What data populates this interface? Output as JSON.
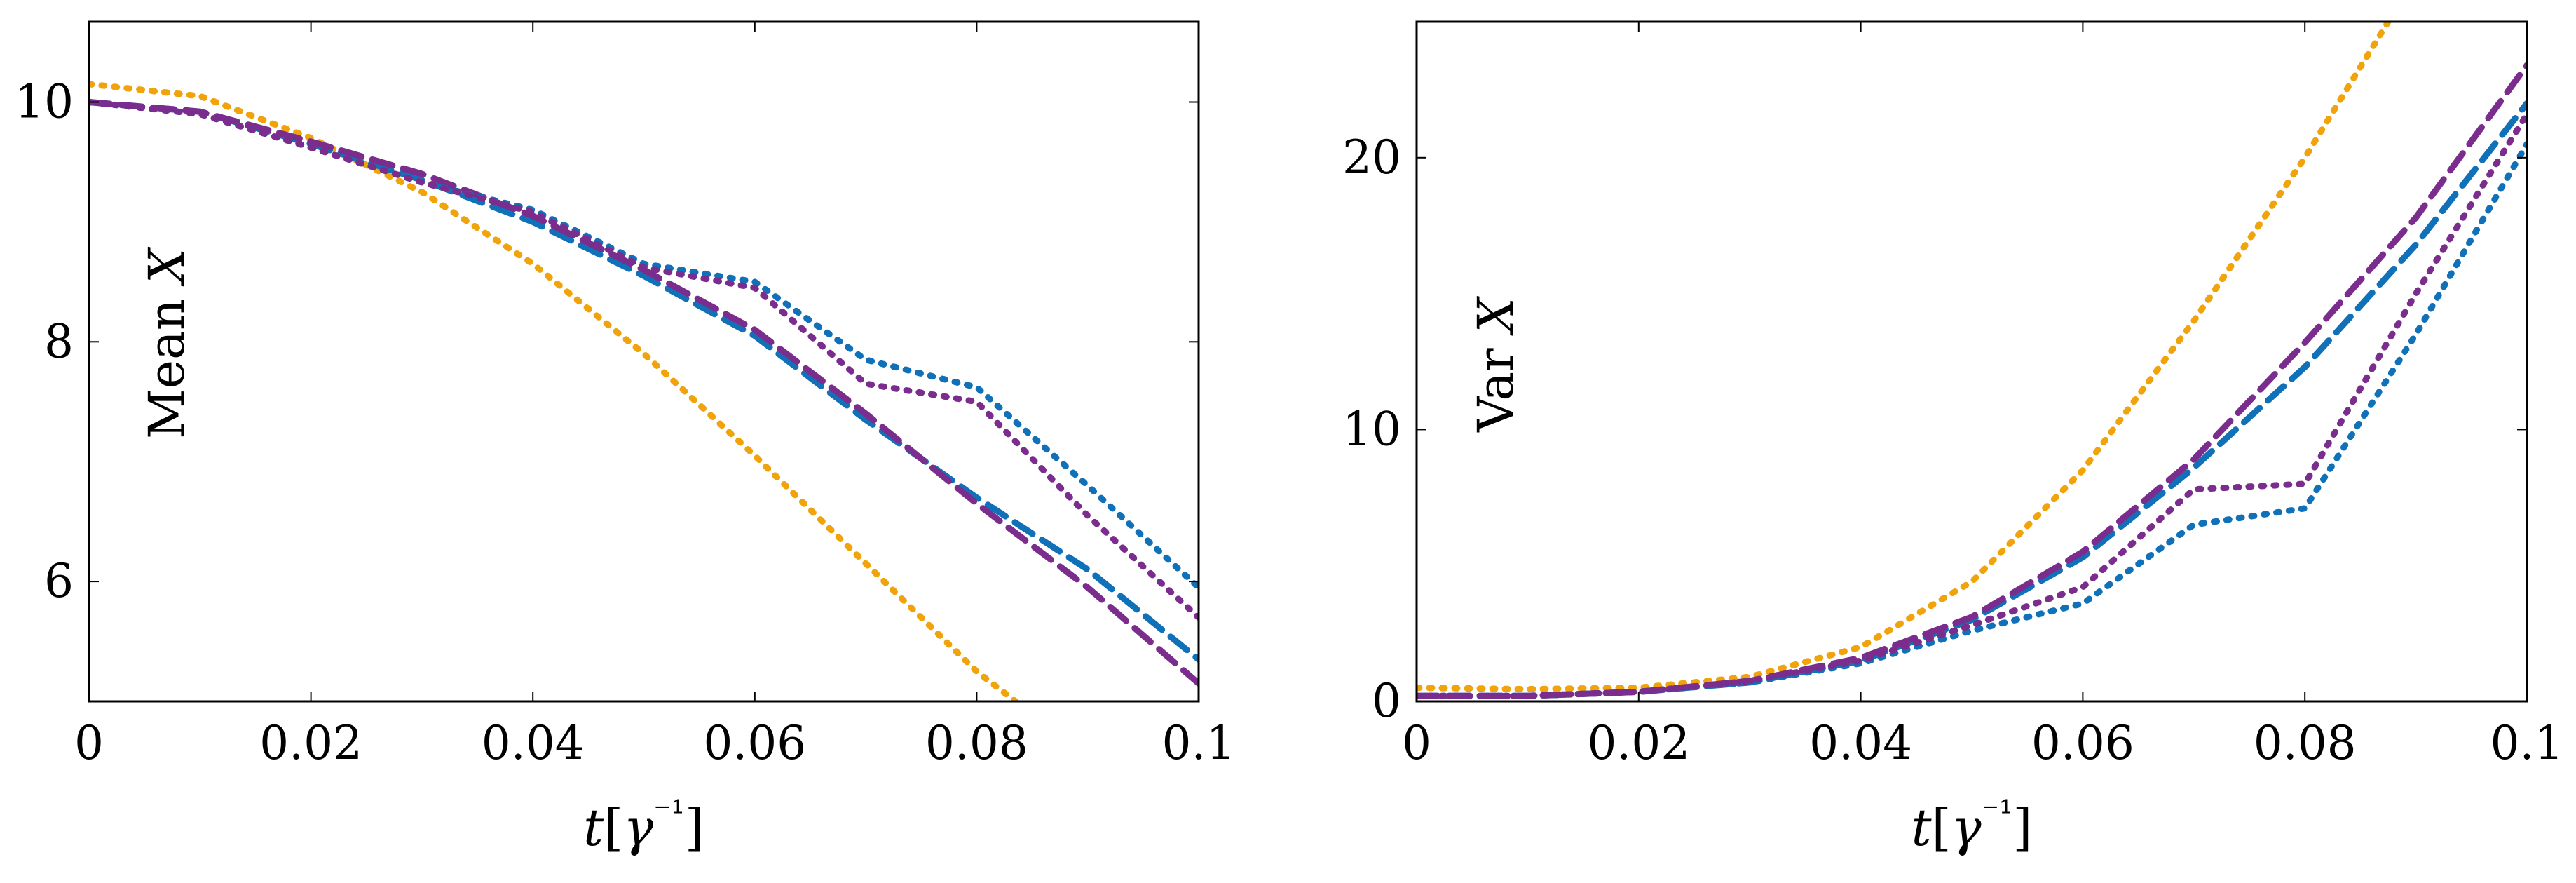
{
  "chart_data": [
    {
      "type": "line",
      "panel": "left",
      "xlabel": "t[γ⁻¹]",
      "inner_label": "Mean X",
      "xlim": [
        0,
        0.1
      ],
      "ylim": [
        5,
        10.67
      ],
      "x_ticks": [
        0,
        0.02,
        0.04,
        0.06,
        0.08,
        0.1
      ],
      "x_tick_labels": [
        "0",
        "0.02",
        "0.04",
        "0.06",
        "0.08",
        "0.1"
      ],
      "y_ticks": [
        6,
        8,
        10
      ],
      "y_tick_labels": [
        "6",
        "8",
        "10"
      ],
      "series": [
        {
          "name": "orange-dotted",
          "color": "#f0a30a",
          "style": "dotted",
          "x": [
            0,
            0.01,
            0.02,
            0.03,
            0.04,
            0.05,
            0.06,
            0.07,
            0.08,
            0.0835
          ],
          "y": [
            10.15,
            10.05,
            9.7,
            9.25,
            8.65,
            7.9,
            7.05,
            6.15,
            5.25,
            5.0
          ]
        },
        {
          "name": "blue-dashed",
          "color": "#1070b8",
          "style": "dashed",
          "x": [
            0,
            0.01,
            0.02,
            0.03,
            0.04,
            0.05,
            0.06,
            0.07,
            0.08,
            0.09,
            0.1
          ],
          "y": [
            10.0,
            9.92,
            9.65,
            9.35,
            9.0,
            8.55,
            8.05,
            7.35,
            6.7,
            6.1,
            5.35
          ]
        },
        {
          "name": "purple-dashed",
          "color": "#7b2d8e",
          "style": "dashed",
          "x": [
            0,
            0.01,
            0.02,
            0.03,
            0.04,
            0.05,
            0.06,
            0.07,
            0.08,
            0.09,
            0.1
          ],
          "y": [
            10.0,
            9.92,
            9.67,
            9.4,
            9.05,
            8.6,
            8.1,
            7.4,
            6.65,
            5.95,
            5.15
          ]
        },
        {
          "name": "blue-dotted",
          "color": "#1070b8",
          "style": "dotted",
          "x": [
            0,
            0.01,
            0.02,
            0.03,
            0.04,
            0.05,
            0.06,
            0.07,
            0.08,
            0.09,
            0.1
          ],
          "y": [
            10.0,
            9.9,
            9.62,
            9.33,
            9.1,
            8.65,
            8.5,
            7.85,
            7.62,
            6.8,
            5.95
          ]
        },
        {
          "name": "purple-dotted",
          "color": "#7b2d8e",
          "style": "dotted",
          "x": [
            0,
            0.01,
            0.02,
            0.03,
            0.04,
            0.05,
            0.06,
            0.07,
            0.08,
            0.09,
            0.1
          ],
          "y": [
            10.0,
            9.9,
            9.62,
            9.33,
            9.08,
            8.62,
            8.45,
            7.65,
            7.5,
            6.55,
            5.7
          ]
        }
      ]
    },
    {
      "type": "line",
      "panel": "right",
      "xlabel": "t[γ⁻¹]",
      "inner_label": "Var X",
      "xlim": [
        0,
        0.1
      ],
      "ylim": [
        0,
        25
      ],
      "x_ticks": [
        0,
        0.02,
        0.04,
        0.06,
        0.08,
        0.1
      ],
      "x_tick_labels": [
        "0",
        "0.02",
        "0.04",
        "0.06",
        "0.08",
        "0.1"
      ],
      "y_ticks": [
        0,
        10,
        20
      ],
      "y_tick_labels": [
        "0",
        "10",
        "20"
      ],
      "series": [
        {
          "name": "orange-dotted",
          "color": "#f0a30a",
          "style": "dotted",
          "x": [
            0,
            0.01,
            0.02,
            0.03,
            0.04,
            0.05,
            0.06,
            0.07,
            0.08,
            0.0875
          ],
          "y": [
            0.5,
            0.45,
            0.5,
            0.9,
            2.0,
            4.4,
            8.5,
            14.0,
            20.0,
            25.0
          ]
        },
        {
          "name": "blue-dashed",
          "color": "#1070b8",
          "style": "dashed",
          "x": [
            0,
            0.01,
            0.02,
            0.03,
            0.04,
            0.05,
            0.06,
            0.07,
            0.08,
            0.09,
            0.1
          ],
          "y": [
            0.2,
            0.2,
            0.35,
            0.7,
            1.5,
            3.0,
            5.3,
            8.6,
            12.3,
            16.8,
            22.0
          ]
        },
        {
          "name": "purple-dashed",
          "color": "#7b2d8e",
          "style": "dashed",
          "x": [
            0,
            0.01,
            0.02,
            0.03,
            0.04,
            0.05,
            0.06,
            0.07,
            0.08,
            0.09,
            0.1
          ],
          "y": [
            0.2,
            0.2,
            0.35,
            0.75,
            1.6,
            3.1,
            5.5,
            8.9,
            13.2,
            17.8,
            23.4
          ]
        },
        {
          "name": "blue-dotted",
          "color": "#1070b8",
          "style": "dotted",
          "x": [
            0,
            0.01,
            0.02,
            0.03,
            0.04,
            0.05,
            0.06,
            0.07,
            0.08,
            0.09,
            0.1
          ],
          "y": [
            0.2,
            0.2,
            0.35,
            0.7,
            1.4,
            2.6,
            3.6,
            6.5,
            7.1,
            13.5,
            20.5
          ]
        },
        {
          "name": "purple-dotted",
          "color": "#7b2d8e",
          "style": "dotted",
          "x": [
            0,
            0.01,
            0.02,
            0.03,
            0.04,
            0.05,
            0.06,
            0.07,
            0.08,
            0.09,
            0.1
          ],
          "y": [
            0.2,
            0.2,
            0.35,
            0.75,
            1.5,
            2.8,
            4.2,
            7.8,
            8.0,
            15.0,
            21.6
          ]
        }
      ]
    }
  ]
}
